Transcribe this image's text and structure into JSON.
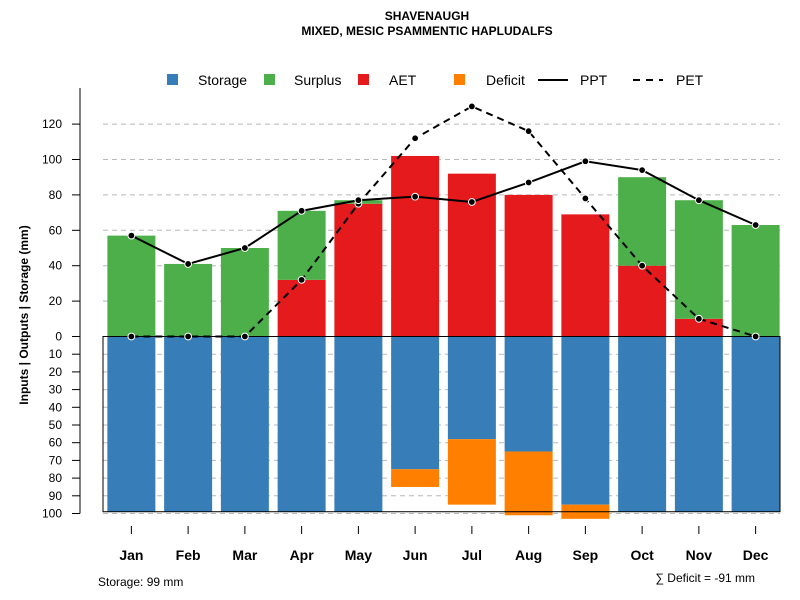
{
  "chart_data": {
    "type": "bar",
    "title": "SHAVENAUGH",
    "subtitle": "MIXED, MESIC PSAMMENTIC HAPLUDALFS",
    "ylabel": "Inputs | Outputs | Storage     (mm)",
    "categories": [
      "Jan",
      "Feb",
      "Mar",
      "Apr",
      "May",
      "Jun",
      "Jul",
      "Aug",
      "Sep",
      "Oct",
      "Nov",
      "Dec"
    ],
    "y_ticks_upper": [
      0,
      20,
      40,
      60,
      80,
      100,
      120
    ],
    "y_ticks_lower": [
      10,
      20,
      30,
      40,
      50,
      60,
      70,
      80,
      90,
      100
    ],
    "ylim_upper": [
      0,
      140
    ],
    "ylim_lower": [
      0,
      100
    ],
    "storage_capacity": 99,
    "series": [
      {
        "name": "AET",
        "values": [
          0,
          0,
          0,
          32,
          75,
          102,
          92,
          80,
          69,
          40,
          10,
          0
        ],
        "color": "#E41A1C"
      },
      {
        "name": "Surplus",
        "values": [
          57,
          41,
          50,
          39,
          2,
          0,
          0,
          0,
          0,
          50,
          67,
          63
        ],
        "color": "#4DAF4A"
      },
      {
        "name": "Storage",
        "values": [
          99,
          99,
          99,
          99,
          99,
          75,
          58,
          65,
          95,
          99,
          99,
          99
        ],
        "color": "#377EB8"
      },
      {
        "name": "Deficit",
        "values": [
          0,
          0,
          0,
          0,
          0,
          10,
          37,
          36,
          8,
          0,
          0,
          0
        ],
        "color": "#FF7F00"
      },
      {
        "name": "PPT",
        "values": [
          57,
          41,
          50,
          71,
          77,
          79,
          76,
          87,
          99,
          94,
          77,
          63
        ],
        "style": "solid"
      },
      {
        "name": "PET",
        "values": [
          0,
          0,
          0,
          32,
          75,
          112,
          130,
          116,
          78,
          40,
          10,
          0
        ],
        "style": "dashed"
      }
    ],
    "legend": {
      "position": "top",
      "items": [
        {
          "label": "Storage",
          "type": "box",
          "color": "#377EB8"
        },
        {
          "label": "Surplus",
          "type": "box",
          "color": "#4DAF4A"
        },
        {
          "label": "AET",
          "type": "box",
          "color": "#E41A1C"
        },
        {
          "label": "Deficit",
          "type": "box",
          "color": "#FF7F00"
        },
        {
          "label": "PPT",
          "type": "line",
          "style": "solid"
        },
        {
          "label": "PET",
          "type": "line",
          "style": "dashed"
        }
      ]
    },
    "footnote_left": "Storage: 99 mm",
    "footnote_right": "∑ Deficit = -91 mm"
  }
}
